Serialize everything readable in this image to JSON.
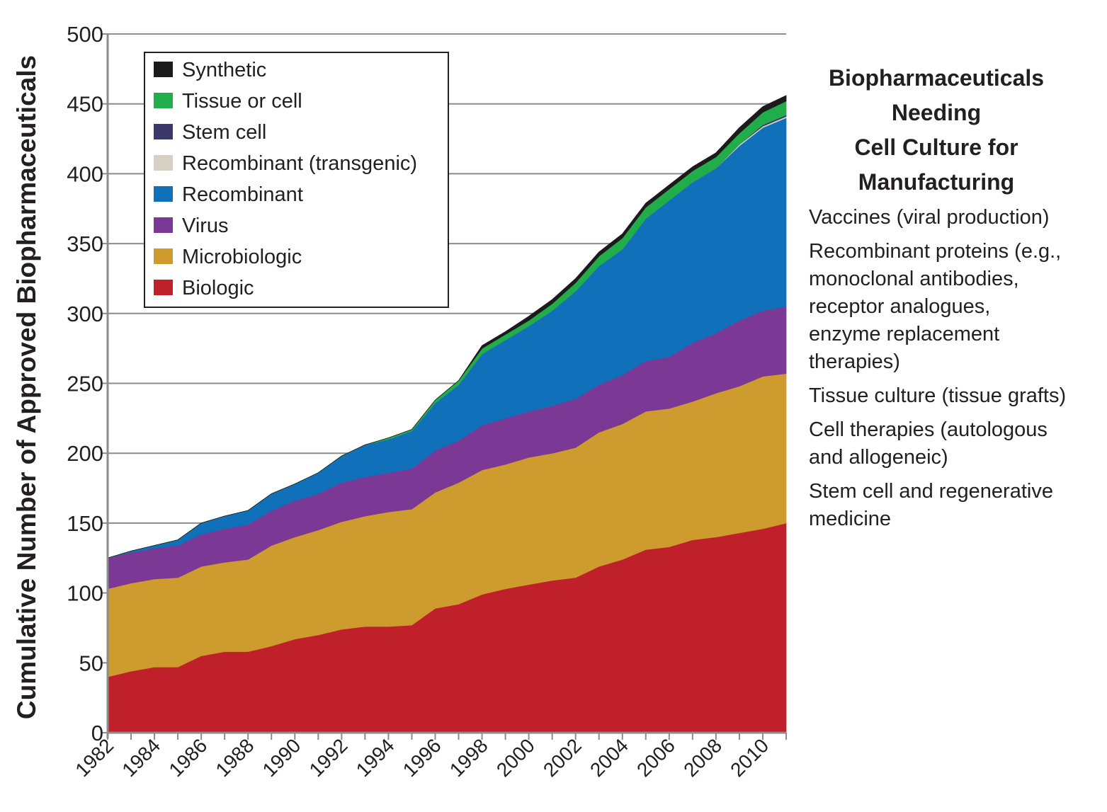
{
  "chart_data": {
    "type": "area",
    "stacked": true,
    "ylabel": "Cumulative Number of Approved Biopharmaceuticals",
    "xlabel": "",
    "ylim": [
      0,
      500
    ],
    "yticks": [
      0,
      50,
      100,
      150,
      200,
      250,
      300,
      350,
      400,
      450,
      500
    ],
    "xlim": [
      1982,
      2011
    ],
    "xticks": [
      1982,
      1984,
      1986,
      1988,
      1990,
      1992,
      1994,
      1996,
      1998,
      2000,
      2002,
      2004,
      2006,
      2008,
      2010
    ],
    "grid": true,
    "legend_position": "top-left",
    "x": [
      1982,
      1983,
      1984,
      1985,
      1986,
      1987,
      1988,
      1989,
      1990,
      1991,
      1992,
      1993,
      1994,
      1995,
      1996,
      1997,
      1998,
      1999,
      2000,
      2001,
      2002,
      2003,
      2004,
      2005,
      2006,
      2007,
      2008,
      2009,
      2010,
      2011
    ],
    "series": [
      {
        "name": "Biologic",
        "color": "#c0202a",
        "values": [
          40,
          44,
          47,
          47,
          55,
          58,
          58,
          62,
          67,
          70,
          74,
          76,
          76,
          77,
          89,
          92,
          99,
          103,
          106,
          109,
          111,
          119,
          124,
          131,
          133,
          138,
          140,
          143,
          146,
          150
        ]
      },
      {
        "name": "Microbiologic",
        "color": "#cd9b2e",
        "values": [
          63,
          63,
          63,
          64,
          64,
          64,
          66,
          72,
          73,
          75,
          77,
          79,
          82,
          83,
          83,
          87,
          89,
          89,
          91,
          91,
          93,
          96,
          97,
          99,
          99,
          99,
          103,
          105,
          109,
          107
        ]
      },
      {
        "name": "Virus",
        "color": "#7b3894",
        "values": [
          22,
          22,
          22,
          23,
          23,
          24,
          25,
          25,
          26,
          26,
          28,
          28,
          28,
          29,
          30,
          30,
          32,
          33,
          33,
          34,
          35,
          34,
          35,
          36,
          37,
          42,
          43,
          47,
          47,
          48
        ]
      },
      {
        "name": "Recombinant",
        "color": "#1170ba",
        "values": [
          0,
          1,
          2,
          4,
          8,
          9,
          10,
          12,
          12,
          15,
          19,
          23,
          24,
          27,
          34,
          40,
          51,
          56,
          61,
          68,
          77,
          85,
          90,
          102,
          112,
          115,
          118,
          125,
          131,
          135
        ]
      },
      {
        "name": "Recombinant (transgenic)",
        "color": "#d6d0c4",
        "values": [
          0,
          0,
          0,
          0,
          0,
          0,
          0,
          0,
          0,
          0,
          0,
          0,
          0,
          0,
          0,
          0,
          0,
          0,
          0,
          0,
          0,
          0,
          0,
          0,
          0,
          0,
          0,
          1,
          1,
          1
        ]
      },
      {
        "name": "Stem cell",
        "color": "#3a3868",
        "values": [
          0,
          0,
          0,
          0,
          0,
          0,
          0,
          0,
          0,
          0,
          0,
          0,
          0,
          0,
          0,
          0,
          0,
          0,
          0,
          0,
          0,
          0,
          0,
          0,
          0,
          0,
          0,
          0,
          1,
          1
        ]
      },
      {
        "name": "Tissue or cell",
        "color": "#22ad4b",
        "values": [
          0,
          0,
          0,
          0,
          0,
          0,
          0,
          0,
          0,
          0,
          0,
          0,
          1,
          1,
          2,
          3,
          4,
          4,
          4,
          5,
          6,
          7,
          8,
          8,
          8,
          8,
          8,
          8,
          9,
          10
        ]
      },
      {
        "name": "Synthetic",
        "color": "#1c1a1a",
        "values": [
          0,
          0,
          0,
          0,
          0,
          0,
          0,
          0,
          0,
          0,
          0,
          0,
          0,
          0,
          0,
          0,
          2,
          2,
          3,
          3,
          3,
          3,
          3,
          3,
          3,
          3,
          3,
          4,
          4,
          4
        ]
      }
    ],
    "legend_order": [
      "Synthetic",
      "Tissue or cell",
      "Stem cell",
      "Recombinant (transgenic)",
      "Recombinant",
      "Virus",
      "Microbiologic",
      "Biologic"
    ]
  },
  "side_panel": {
    "title_lines": [
      "Biopharmaceuticals",
      "Needing",
      "Cell Culture for",
      "Manufacturing"
    ],
    "items": [
      [
        "Vaccines (viral production)"
      ],
      [
        "Recombinant proteins (e.g.,",
        "monoclonal antibodies,",
        "receptor analogues,",
        "enzyme replacement",
        "therapies)"
      ],
      [
        "Tissue culture (tissue grafts)"
      ],
      [
        "Cell therapies (autologous",
        "and allogeneic)"
      ],
      [
        "Stem cell and regenerative",
        "medicine"
      ]
    ]
  }
}
